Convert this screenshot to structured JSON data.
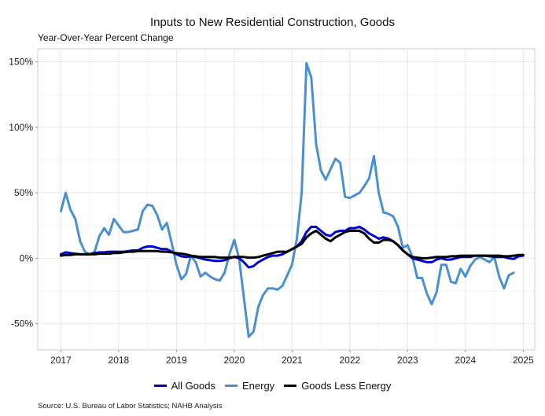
{
  "chart_data": {
    "type": "line",
    "title": "Inputs to New Residential Construction, Goods",
    "subtitle": "Year-Over-Year Percent Change",
    "xlabel": "",
    "ylabel": "",
    "x_start": "2017-01",
    "x_frequency": "monthly",
    "xlim": [
      2016.6,
      2025.2
    ],
    "ylim": [
      -70,
      160
    ],
    "x_ticks": [
      2017,
      2018,
      2019,
      2020,
      2021,
      2022,
      2023,
      2024,
      2025
    ],
    "x_tick_labels": [
      "2017",
      "2018",
      "2019",
      "2020",
      "2021",
      "2022",
      "2023",
      "2024",
      "2025"
    ],
    "y_ticks": [
      -50,
      0,
      50,
      100,
      150
    ],
    "y_tick_labels": [
      "-50%",
      "0%",
      "50%",
      "100%",
      "150%"
    ],
    "grid": true,
    "legend_position": "bottom",
    "series": [
      {
        "name": "All Goods",
        "color": "#0000cc",
        "values": [
          3,
          4.5,
          4,
          3.5,
          3,
          3,
          3,
          4,
          4.5,
          4.5,
          5,
          5,
          5,
          5,
          5.5,
          6,
          6,
          8,
          9,
          9,
          8,
          7,
          7,
          5,
          3,
          1.5,
          1,
          1.5,
          1,
          0,
          -1,
          -1.5,
          -2,
          -2,
          -1.5,
          0,
          1,
          0,
          -3,
          -7,
          -6,
          -3,
          -1,
          1,
          2,
          2,
          3,
          5,
          7,
          9,
          13,
          20,
          24,
          24,
          21,
          18,
          17,
          20,
          21,
          21,
          23,
          23,
          24,
          22,
          19,
          17,
          15,
          16,
          15,
          13,
          10,
          6,
          3,
          0,
          -1,
          -2,
          -3,
          -3,
          -1,
          0,
          -1,
          -1,
          0,
          1,
          1,
          1,
          2,
          2,
          2,
          1.5,
          1,
          1,
          1,
          0,
          -0.5,
          1.5,
          2
        ]
      },
      {
        "name": "Energy",
        "color": "#4a90d0",
        "values": [
          36,
          50,
          37,
          30,
          13,
          5,
          3,
          5,
          17,
          23,
          18,
          30,
          25,
          20,
          20,
          21,
          22,
          36,
          41,
          40,
          33,
          22,
          27,
          12,
          -5,
          -16,
          -12,
          2,
          -3,
          -14,
          -11,
          -14,
          -16,
          -17,
          -11,
          3,
          14,
          0,
          -30,
          -60,
          -56,
          -37,
          -28,
          -23,
          -23,
          -24,
          -21,
          -13,
          -5,
          15,
          50,
          149,
          138,
          87,
          67,
          60,
          68,
          76,
          73,
          47,
          46,
          48,
          50,
          55,
          61,
          78,
          50,
          35,
          34,
          32,
          24,
          8,
          10,
          1,
          -15,
          -15,
          -27,
          -35,
          -26,
          -5,
          -5,
          -18,
          -19,
          -8,
          -14,
          -6,
          -1,
          1,
          -1,
          -3,
          1,
          -14,
          -23,
          -13,
          -11
        ]
      },
      {
        "name": "Goods Less Energy",
        "color": "#000000",
        "values": [
          2,
          2.5,
          2.5,
          3,
          3,
          3,
          3,
          3,
          3.5,
          3.5,
          3.5,
          4,
          4,
          4.5,
          5,
          5,
          5.5,
          5.5,
          5.5,
          5.5,
          5.5,
          5,
          5,
          4.5,
          4,
          3.5,
          3,
          2,
          1.5,
          1,
          1,
          1,
          1,
          0.5,
          0.5,
          0.5,
          1,
          1,
          1,
          0.5,
          0.5,
          1,
          2,
          3,
          4,
          5,
          5,
          5,
          7,
          9,
          11,
          16,
          19,
          21,
          18,
          15,
          13,
          16,
          18,
          20,
          21,
          21,
          21,
          19,
          15,
          12,
          12,
          14,
          14,
          13,
          10,
          6,
          3,
          1,
          0.5,
          0,
          0,
          0.5,
          1,
          1,
          1,
          1.5,
          1.5,
          2,
          2,
          2,
          2,
          2,
          2,
          2,
          2,
          2,
          1.5,
          1.5,
          2,
          2.5,
          2.5
        ]
      }
    ]
  },
  "source": "Source: U.S. Bureau of Labor Statistics; NAHB Analysis"
}
